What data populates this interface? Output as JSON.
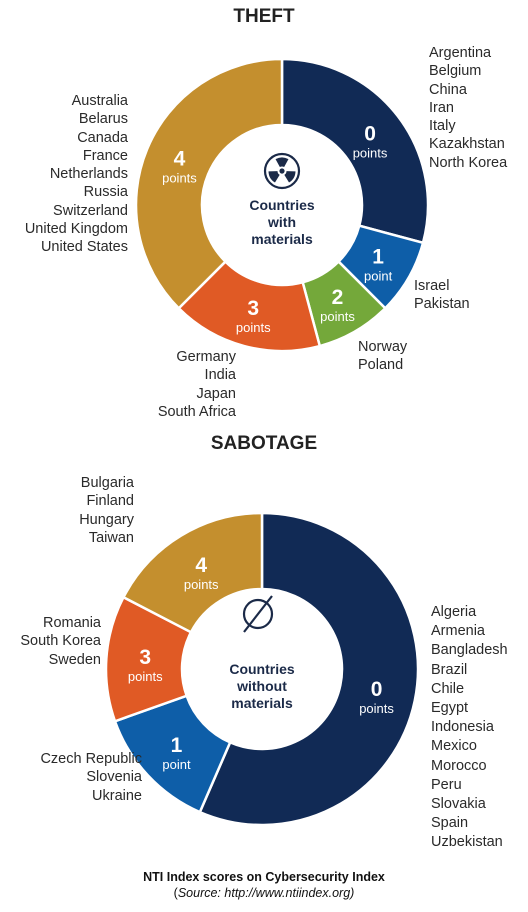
{
  "caption": {
    "title": "NTI Index scores on Cybersecurity Index",
    "source_prefix": "(",
    "source_word": "Source:",
    "source_url": " http://www.ntiindex.org)"
  },
  "chart_data": [
    {
      "type": "pie",
      "donut": true,
      "title": "THEFT",
      "center_label": [
        "Countries",
        "with",
        "materials"
      ],
      "center_icon": "radiation-icon",
      "unit_labels": {
        "plural": "points",
        "singular": "point"
      },
      "slices": [
        {
          "score": "0",
          "unit": "points",
          "count": 7,
          "color": "#112a55",
          "countries": [
            "Argentina",
            "Belgium",
            "China",
            "Iran",
            "Italy",
            "Kazakhstan",
            "North Korea"
          ]
        },
        {
          "score": "1",
          "unit": "point",
          "count": 2,
          "color": "#0e5ea8",
          "countries": [
            "Israel",
            "Pakistan"
          ]
        },
        {
          "score": "2",
          "unit": "points",
          "count": 2,
          "color": "#74a83a",
          "countries": [
            "Norway",
            "Poland"
          ]
        },
        {
          "score": "3",
          "unit": "points",
          "count": 4,
          "color": "#e05a25",
          "countries": [
            "Germany",
            "India",
            "Japan",
            "South Africa"
          ]
        },
        {
          "score": "4",
          "unit": "points",
          "count": 9,
          "color": "#c48f2e",
          "countries": [
            "Australia",
            "Belarus",
            "Canada",
            "France",
            "Netherlands",
            "Russia",
            "Switzerland",
            "United Kingdom",
            "United States"
          ]
        }
      ]
    },
    {
      "type": "pie",
      "donut": true,
      "title": "SABOTAGE",
      "center_label": [
        "Countries",
        "without",
        "materials"
      ],
      "center_icon": "empty-set-icon",
      "unit_labels": {
        "plural": "points",
        "singular": "point"
      },
      "slices": [
        {
          "score": "0",
          "unit": "points",
          "count": 13,
          "color": "#112a55",
          "countries": [
            "Algeria",
            "Armenia",
            "Bangladesh",
            "Brazil",
            "Chile",
            "Egypt",
            "Indonesia",
            "Mexico",
            "Morocco",
            "Peru",
            "Slovakia",
            "Spain",
            "Uzbekistan"
          ]
        },
        {
          "score": "1",
          "unit": "point",
          "count": 3,
          "color": "#0e5ea8",
          "countries": [
            "Czech Republic",
            "Slovenia",
            "Ukraine"
          ]
        },
        {
          "score": "3",
          "unit": "points",
          "count": 3,
          "color": "#e05a25",
          "countries": [
            "Romania",
            "South Korea",
            "Sweden"
          ]
        },
        {
          "score": "4",
          "unit": "points",
          "count": 4,
          "color": "#c48f2e",
          "countries": [
            "Bulgaria",
            "Finland",
            "Hungary",
            "Taiwan"
          ]
        }
      ]
    }
  ]
}
